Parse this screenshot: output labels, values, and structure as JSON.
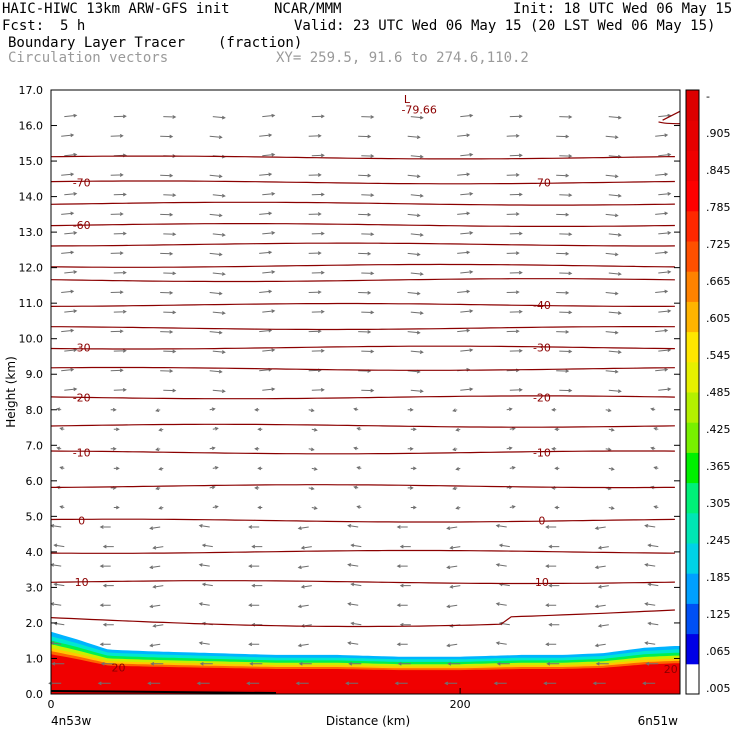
{
  "header": {
    "model": "HAIC-HIWC 13km ARW-GFS init",
    "org": "NCAR/MMM",
    "init": "Init: 18 UTC Wed 06 May 15",
    "fcst_label": "Fcst:",
    "fcst_value": "5 h",
    "valid": "Valid: 23 UTC Wed 06 May 15 (20 LST Wed 06 May 15)",
    "field_name": "Boundary Layer Tracer",
    "field_units": "(fraction)",
    "vector_name": "Circulation vectors",
    "xy_range": "XY= 259.5, 91.6 to 274.6,110.2"
  },
  "chart_data": {
    "type": "cross-section",
    "xlabel": "Distance (km)",
    "ylabel": "Height (km)",
    "xlim": [
      0,
      300
    ],
    "ylim": [
      0,
      17
    ],
    "x_ticks": [
      0,
      200
    ],
    "x_tick_labels": [
      "0",
      "200"
    ],
    "y_ticks": [
      0,
      1,
      2,
      3,
      4,
      5,
      6,
      7,
      8,
      9,
      10,
      11,
      12,
      13,
      14,
      15,
      16,
      17
    ],
    "y_tick_labels": [
      "0.0",
      "1.0",
      "2.0",
      "3.0",
      "4.0",
      "5.0",
      "6.0",
      "7.0",
      "8.0",
      "9.0",
      "10.0",
      "11.0",
      "12.0",
      "13.0",
      "14.0",
      "15.0",
      "16.0",
      "17.0"
    ],
    "left_endpoint_label": "4n53w",
    "right_endpoint_label": "6n51w",
    "grid": false,
    "colorbar": {
      "labels": [
        ".005",
        ".065",
        ".125",
        ".185",
        ".245",
        ".305",
        ".365",
        ".425",
        ".485",
        ".545",
        ".605",
        ".665",
        ".725",
        ".785",
        ".845",
        ".905",
        "-"
      ],
      "colors": [
        "#ffffff",
        "#0000e6",
        "#0050f5",
        "#00a0ff",
        "#00d2e6",
        "#00e6b4",
        "#00f078",
        "#00f000",
        "#78f000",
        "#b4f000",
        "#e6f000",
        "#ffe600",
        "#ffb400",
        "#ff8200",
        "#ff5000",
        "#ff2800",
        "#ff0000",
        "#f00000",
        "#e60000",
        "#dc0000"
      ]
    },
    "temperature_contours_c": [
      {
        "value": 10,
        "height_km": 3.15,
        "labels": [
          "10",
          "10"
        ]
      },
      {
        "value": 0,
        "height_km": 4.88,
        "labels": [
          "0",
          "0"
        ]
      },
      {
        "value": -10,
        "height_km": 6.8,
        "labels": [
          "-10",
          "-10"
        ]
      },
      {
        "value": -20,
        "height_km": 8.35,
        "labels": [
          "-20",
          "-20"
        ]
      },
      {
        "value": -30,
        "height_km": 9.75,
        "labels": [
          "-30",
          "-30"
        ]
      },
      {
        "value": -40,
        "height_km": 10.95,
        "labels": [
          "",
          "-40"
        ]
      },
      {
        "value": -60,
        "height_km": 13.2,
        "labels": [
          "-60",
          ""
        ]
      },
      {
        "value": -70,
        "height_km": 14.4,
        "labels": [
          "-70",
          "-70"
        ]
      }
    ],
    "extra_contour_heights_km": [
      2.15,
      4.0,
      5.85,
      7.55,
      9.15,
      10.3,
      11.65,
      12.05,
      12.65,
      13.8,
      15.1
    ],
    "annotations": [
      {
        "text": "L",
        "x": 174,
        "y": 16.75
      },
      {
        "text": "-79.66",
        "x": 180,
        "y": 16.45
      },
      {
        "text": "20",
        "x": 33,
        "y": 0.75
      },
      {
        "text": "20",
        "x": 303,
        "y": 0.7
      }
    ],
    "tracer_top_height_km": [
      1.75,
      1.55,
      1.25,
      1.2,
      1.15,
      1.1,
      1.1,
      1.05,
      1.05,
      1.1,
      1.1,
      1.15,
      1.3,
      1.35
    ],
    "tracer_top_x_km": [
      0,
      12,
      28,
      50,
      80,
      110,
      140,
      170,
      200,
      230,
      250,
      270,
      290,
      305
    ]
  }
}
